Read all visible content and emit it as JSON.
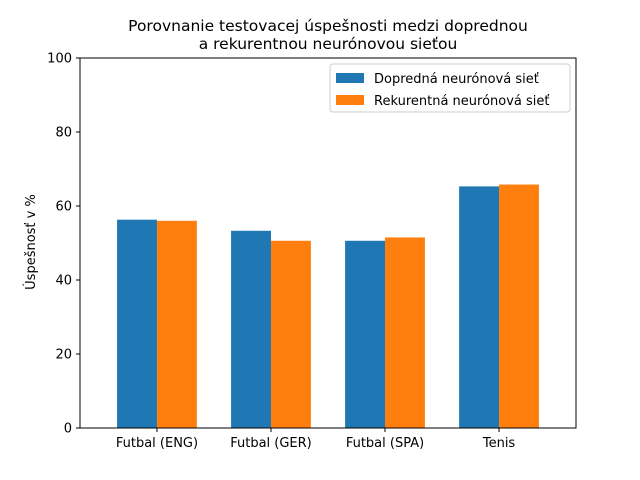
{
  "chart_data": {
    "type": "bar",
    "title_lines": [
      "Porovnanie testovacej úspešnosti medzi doprednou",
      "a  rekurentnou neurónovou sieťou"
    ],
    "xlabel": "",
    "ylabel": "Úspešnosť v %",
    "ylim": [
      0,
      100
    ],
    "yticks": [
      "0",
      "20",
      "40",
      "60",
      "80",
      "100"
    ],
    "categories": [
      "Futbal (ENG)",
      "Futbal (GER)",
      "Futbal (SPA)",
      "Tenis"
    ],
    "series": [
      {
        "name": "Dopredná neurónová sieť",
        "color": "#1f77b4",
        "values": [
          56.3,
          53.3,
          50.6,
          65.3
        ]
      },
      {
        "name": "Rekurentná neurónová sieť",
        "color": "#ff7f0e",
        "values": [
          56.0,
          50.6,
          51.5,
          65.8
        ]
      }
    ],
    "legend_position": "top-right",
    "grid": false
  }
}
